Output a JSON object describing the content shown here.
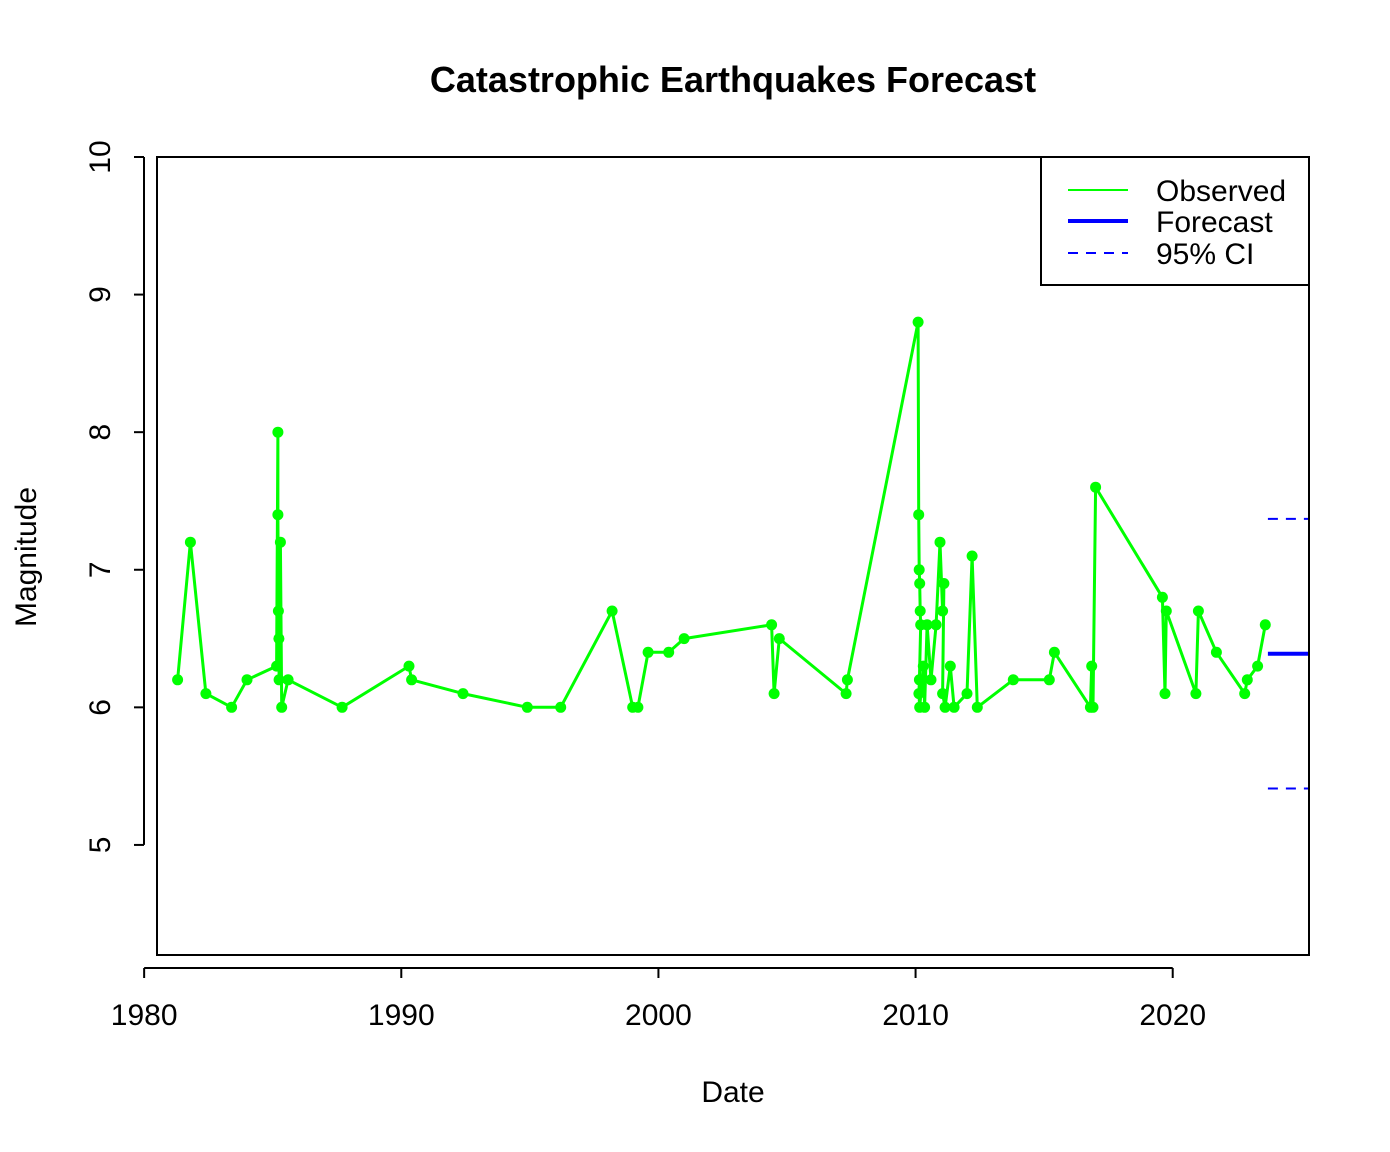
{
  "chart_data": {
    "type": "line",
    "title": "Catastrophic Earthquakes Forecast",
    "xlabel": "Date",
    "ylabel": "Magnitude",
    "xlim": [
      1980.5,
      2025.3
    ],
    "ylim": [
      4.2,
      10
    ],
    "x_ticks": [
      1980,
      1990,
      2000,
      2010,
      2020
    ],
    "y_ticks": [
      5,
      6,
      7,
      8,
      9,
      10
    ],
    "grid": false,
    "legend_position": "top-right",
    "legend": [
      {
        "label": "Observed",
        "color": "#00ff00",
        "style": "solid"
      },
      {
        "label": "Forecast",
        "color": "#0000ff",
        "style": "solid-thick"
      },
      {
        "label": "95% CI",
        "color": "#0000ff",
        "style": "dashed"
      }
    ],
    "series": [
      {
        "name": "Observed",
        "color": "#00ff00",
        "points": [
          [
            1981.3,
            6.2
          ],
          [
            1981.8,
            7.2
          ],
          [
            1982.4,
            6.1
          ],
          [
            1983.4,
            6.0
          ],
          [
            1984.0,
            6.2
          ],
          [
            1985.15,
            6.3
          ],
          [
            1985.2,
            8.0
          ],
          [
            1985.2,
            7.4
          ],
          [
            1985.22,
            6.7
          ],
          [
            1985.24,
            6.5
          ],
          [
            1985.25,
            6.2
          ],
          [
            1985.3,
            7.2
          ],
          [
            1985.35,
            6.0
          ],
          [
            1985.6,
            6.2
          ],
          [
            1987.7,
            6.0
          ],
          [
            1990.3,
            6.3
          ],
          [
            1990.4,
            6.2
          ],
          [
            1992.4,
            6.1
          ],
          [
            1994.9,
            6.0
          ],
          [
            1996.2,
            6.0
          ],
          [
            1998.2,
            6.7
          ],
          [
            1999.0,
            6.0
          ],
          [
            1999.2,
            6.0
          ],
          [
            1999.6,
            6.4
          ],
          [
            2000.4,
            6.4
          ],
          [
            2001.0,
            6.5
          ],
          [
            2004.4,
            6.6
          ],
          [
            2004.5,
            6.1
          ],
          [
            2004.7,
            6.5
          ],
          [
            2007.3,
            6.1
          ],
          [
            2007.35,
            6.2
          ],
          [
            2010.1,
            8.8
          ],
          [
            2010.12,
            7.4
          ],
          [
            2010.14,
            7.0
          ],
          [
            2010.16,
            6.9
          ],
          [
            2010.18,
            6.7
          ],
          [
            2010.2,
            6.6
          ],
          [
            2010.15,
            6.2
          ],
          [
            2010.13,
            6.1
          ],
          [
            2010.16,
            6.0
          ],
          [
            2010.3,
            6.3
          ],
          [
            2010.35,
            6.0
          ],
          [
            2010.45,
            6.6
          ],
          [
            2010.6,
            6.2
          ],
          [
            2010.8,
            6.6
          ],
          [
            2010.95,
            7.2
          ],
          [
            2011.05,
            6.7
          ],
          [
            2011.1,
            6.9
          ],
          [
            2011.05,
            6.1
          ],
          [
            2011.15,
            6.0
          ],
          [
            2011.35,
            6.3
          ],
          [
            2011.5,
            6.0
          ],
          [
            2012.0,
            6.1
          ],
          [
            2012.2,
            7.1
          ],
          [
            2012.4,
            6.0
          ],
          [
            2013.8,
            6.2
          ],
          [
            2015.2,
            6.2
          ],
          [
            2015.4,
            6.4
          ],
          [
            2016.8,
            6.0
          ],
          [
            2016.85,
            6.3
          ],
          [
            2016.9,
            6.0
          ],
          [
            2017.0,
            7.6
          ],
          [
            2019.6,
            6.8
          ],
          [
            2019.7,
            6.1
          ],
          [
            2019.75,
            6.7
          ],
          [
            2020.9,
            6.1
          ],
          [
            2021.0,
            6.7
          ],
          [
            2021.7,
            6.4
          ],
          [
            2022.8,
            6.1
          ],
          [
            2022.9,
            6.2
          ],
          [
            2023.3,
            6.3
          ],
          [
            2023.6,
            6.6
          ]
        ]
      },
      {
        "name": "Forecast",
        "color": "#0000ff",
        "points": [
          [
            2023.7,
            6.39
          ],
          [
            2025.3,
            6.39
          ]
        ]
      },
      {
        "name": "95% CI upper",
        "color": "#0000ff",
        "points": [
          [
            2023.7,
            7.37
          ],
          [
            2025.3,
            7.37
          ]
        ]
      },
      {
        "name": "95% CI lower",
        "color": "#0000ff",
        "points": [
          [
            2023.7,
            5.41
          ],
          [
            2025.3,
            5.41
          ]
        ]
      }
    ]
  }
}
